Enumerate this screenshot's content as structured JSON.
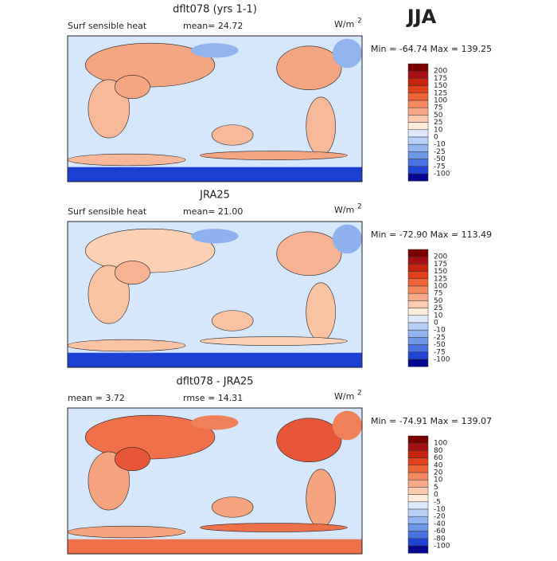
{
  "season": "JJA",
  "panels": [
    {
      "title": "dflt078 (yrs 1-1)",
      "left_text": "Surf sensible heat",
      "mid_text": "mean=  24.72",
      "units": "W/m",
      "units_exp": "2",
      "range_text": "Min = -64.74 Max = 139.25",
      "colorbar_labels": [
        200,
        175,
        150,
        125,
        100,
        75,
        50,
        25,
        10,
        0,
        -10,
        -25,
        -50,
        -75,
        -100
      ]
    },
    {
      "title": "JRA25",
      "left_text": "Surf sensible heat",
      "mid_text": "mean=  21.00",
      "units": "W/m",
      "units_exp": "2",
      "range_text": "Min = -72.90 Max = 113.49",
      "colorbar_labels": [
        200,
        175,
        150,
        125,
        100,
        75,
        50,
        25,
        10,
        0,
        -10,
        -25,
        -50,
        -75,
        -100
      ]
    },
    {
      "title": "dflt078 - JRA25",
      "left_text": "mean =   3.72",
      "mid_text": "rmse =  14.31",
      "units": "W/m",
      "units_exp": "2",
      "range_text": "Min = -74.91 Max = 139.07",
      "colorbar_labels": [
        100,
        80,
        60,
        40,
        20,
        10,
        5,
        0,
        -5,
        -10,
        -20,
        -40,
        -60,
        -80,
        -100
      ]
    }
  ]
}
